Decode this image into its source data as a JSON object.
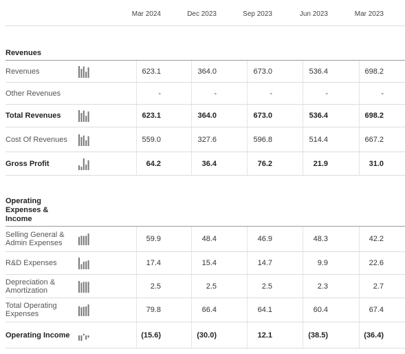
{
  "columns": [
    "Mar 2024",
    "Dec 2023",
    "Sep 2023",
    "Jun 2023",
    "Mar 2023"
  ],
  "sections": [
    {
      "title": "Revenues",
      "rows": [
        {
          "label": "Revenues",
          "bold": false,
          "spark": true,
          "values": [
            "623.1",
            "364.0",
            "673.0",
            "536.4",
            "698.2"
          ]
        },
        {
          "label": "Other Revenues",
          "bold": false,
          "spark": false,
          "values": [
            "-",
            "-",
            "-",
            "-",
            "-"
          ]
        },
        {
          "label": "Total Revenues",
          "bold": true,
          "spark": true,
          "values": [
            "623.1",
            "364.0",
            "673.0",
            "536.4",
            "698.2"
          ]
        },
        {
          "label": "Cost Of Revenues",
          "bold": false,
          "spark": true,
          "values": [
            "559.0",
            "327.6",
            "596.8",
            "514.4",
            "667.2"
          ]
        },
        {
          "label": "Gross Profit",
          "bold": true,
          "spark": true,
          "values": [
            "64.2",
            "36.4",
            "76.2",
            "21.9",
            "31.0"
          ]
        }
      ]
    },
    {
      "title": "Operating Expenses & Income",
      "rows": [
        {
          "label": "Selling General & Admin Expenses",
          "bold": false,
          "spark": true,
          "values": [
            "59.9",
            "48.4",
            "46.9",
            "48.3",
            "42.2"
          ]
        },
        {
          "label": "R&D Expenses",
          "bold": false,
          "spark": true,
          "values": [
            "17.4",
            "15.4",
            "14.7",
            "9.9",
            "22.6"
          ]
        },
        {
          "label": "Depreciation & Amortization",
          "bold": false,
          "spark": true,
          "values": [
            "2.5",
            "2.5",
            "2.5",
            "2.3",
            "2.7"
          ]
        },
        {
          "label": "Total Operating Expenses",
          "bold": false,
          "spark": true,
          "values": [
            "79.8",
            "66.4",
            "64.1",
            "60.4",
            "67.4"
          ]
        },
        {
          "label": "Operating Income",
          "bold": true,
          "spark": true,
          "values": [
            "(15.6)",
            "(30.0)",
            "12.1",
            "(38.5)",
            "(36.4)"
          ]
        }
      ]
    }
  ],
  "colors": {
    "spark_bar": "#777777",
    "row_rule": "#dcdcdc",
    "section_rule": "#9a9a9a"
  },
  "icons": {
    "spark": "sparkline-bar-chart-icon"
  }
}
